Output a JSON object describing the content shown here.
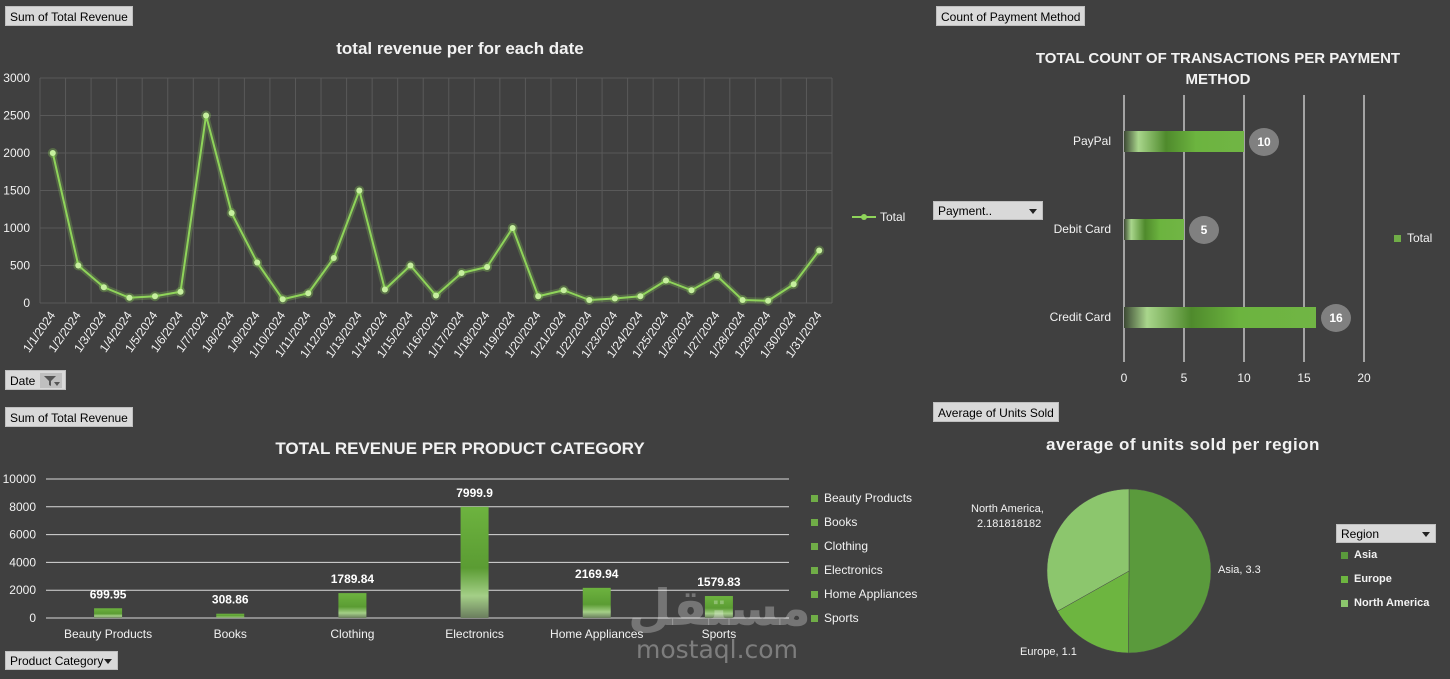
{
  "colors": {
    "background": "#404040",
    "accent": "#70ad47",
    "line": "#8fd45a",
    "gridline": "#595959",
    "pie_asia": "#5a9a3c",
    "pie_europe": "#6db540",
    "pie_north_america": "#8cc66d"
  },
  "line_panel": {
    "field_button": "Sum of Total Revenue",
    "filter_button": "Date",
    "legend": "Total"
  },
  "payment_panel": {
    "field_button": "Count of Payment Method",
    "filter_button": "Payment..",
    "legend": "Total"
  },
  "category_panel": {
    "field_button": "Sum of Total Revenue",
    "filter_button": "Product Category"
  },
  "region_panel": {
    "field_button": "Average of Units Sold",
    "filter_button": "Region"
  },
  "watermark": {
    "arabic": "مستقل",
    "latin": "mostaql.com"
  },
  "chart_data": [
    {
      "type": "line",
      "title": "total revenue per for each date",
      "series": [
        {
          "name": "Total",
          "x": [
            "1/1/2024",
            "1/2/2024",
            "1/3/2024",
            "1/4/2024",
            "1/5/2024",
            "1/6/2024",
            "1/7/2024",
            "1/8/2024",
            "1/9/2024",
            "1/10/2024",
            "1/11/2024",
            "1/12/2024",
            "1/13/2024",
            "1/14/2024",
            "1/15/2024",
            "1/16/2024",
            "1/17/2024",
            "1/18/2024",
            "1/19/2024",
            "1/20/2024",
            "1/21/2024",
            "1/22/2024",
            "1/23/2024",
            "1/24/2024",
            "1/25/2024",
            "1/26/2024",
            "1/27/2024",
            "1/28/2024",
            "1/29/2024",
            "1/30/2024",
            "1/31/2024"
          ],
          "values": [
            2000,
            500,
            210,
            70,
            90,
            150,
            2500,
            1200,
            540,
            50,
            130,
            600,
            1500,
            180,
            500,
            100,
            400,
            480,
            1000,
            90,
            170,
            40,
            60,
            90,
            300,
            170,
            360,
            40,
            30,
            250,
            700
          ]
        }
      ],
      "ylim": [
        0,
        3000
      ],
      "yticks": [
        0,
        500,
        1000,
        1500,
        2000,
        2500,
        3000
      ],
      "grid": true,
      "legend": "right"
    },
    {
      "type": "bar",
      "orientation": "horizontal",
      "title": "TOTAL COUNT OF TRANSACTIONS PER PAYMENT METHOD",
      "categories": [
        "PayPal",
        "Debit Card",
        "Credit Card"
      ],
      "values": [
        10,
        5,
        16
      ],
      "xlim": [
        0,
        20
      ],
      "xticks": [
        0,
        5,
        10,
        15,
        20
      ],
      "legend": "right"
    },
    {
      "type": "bar",
      "title": "TOTAL REVENUE PER PRODUCT CATEGORY",
      "categories": [
        "Beauty Products",
        "Books",
        "Clothing",
        "Electronics",
        "Home Appliances",
        "Sports"
      ],
      "values": [
        699.95,
        308.86,
        1789.84,
        7999.9,
        2169.94,
        1579.83
      ],
      "value_labels": [
        "699.95",
        "308.86",
        "1789.84",
        "7999.9",
        "2169.94",
        "1579.83"
      ],
      "ylim": [
        0,
        10000
      ],
      "yticks": [
        0,
        2000,
        4000,
        6000,
        8000,
        10000
      ],
      "legend": "right"
    },
    {
      "type": "pie",
      "title": "average of units sold per region",
      "labels": [
        "Asia",
        "Europe",
        "North America"
      ],
      "values": [
        3.3,
        1.1,
        2.181818182
      ],
      "slice_labels": [
        "Asia, 3.3",
        "Europe, 1.1",
        "North America, 2.181818182"
      ],
      "legend": "right"
    }
  ]
}
